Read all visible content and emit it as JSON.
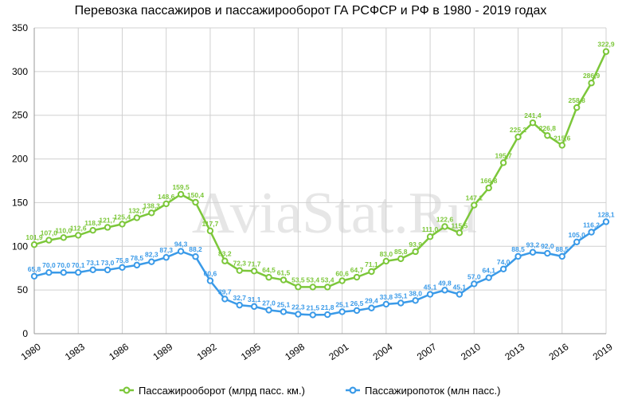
{
  "chart_data": {
    "type": "line",
    "title": "Перевозка пассажиров и пассажирооборот ГА РСФСР и РФ в 1980 -  2019 годах",
    "watermark": "AviaStat.Ru",
    "xlabel": "",
    "ylabel": "",
    "ylim": [
      0,
      350
    ],
    "yticks": [
      "0",
      "50",
      "100",
      "150",
      "200",
      "250",
      "300",
      "350"
    ],
    "x": [
      1980,
      1981,
      1982,
      1983,
      1984,
      1985,
      1986,
      1987,
      1988,
      1989,
      1990,
      1991,
      1992,
      1993,
      1994,
      1995,
      1996,
      1997,
      1998,
      1999,
      2000,
      2001,
      2002,
      2003,
      2004,
      2005,
      2006,
      2007,
      2008,
      2009,
      2010,
      2011,
      2012,
      2013,
      2014,
      2015,
      2016,
      2017,
      2018,
      2019
    ],
    "xticks": [
      "1980",
      "1983",
      "1986",
      "1989",
      "1992",
      "1995",
      "1998",
      "2001",
      "2004",
      "2007",
      "2010",
      "2013",
      "2016",
      "2019"
    ],
    "grid": true,
    "legend_position": "bottom",
    "series": [
      {
        "name": "Пассажирооборот (млрд пасс. км.)",
        "color": "#7cc73a",
        "values": [
          101.9,
          107.0,
          110.0,
          112.6,
          118.3,
          121.7,
          125.4,
          132.7,
          138.3,
          148.6,
          159.5,
          150.4,
          117.7,
          83.2,
          72.3,
          71.7,
          64.5,
          61.5,
          53.5,
          53.4,
          53.4,
          60.6,
          64.7,
          71.1,
          83.0,
          85.8,
          93.9,
          111.0,
          122.6,
          115.5,
          147.1,
          166.8,
          195.7,
          225.2,
          241.4,
          226.8,
          215.6,
          258.8,
          286.9,
          322.9
        ],
        "labels": [
          "101,9",
          "107,0",
          "110,0",
          "112,6",
          "118,3",
          "121,7",
          "125,4",
          "132,7",
          "138,3",
          "148,6",
          "159,5",
          "150,4",
          "117,7",
          "83,2",
          "72,3",
          "71,7",
          "64,5",
          "61,5",
          "53,5",
          "53,4",
          "53,4",
          "60,6",
          "64,7",
          "71,1",
          "83,0",
          "85,8",
          "93,9",
          "111,0",
          "122,6",
          "115,5",
          "147,1",
          "166,8",
          "195,7",
          "225,2",
          "241,4",
          "226,8",
          "215,6",
          "258,8",
          "286,9",
          "322,9"
        ]
      },
      {
        "name": "Пассажиропоток (млн пасс.)",
        "color": "#3a9ae8",
        "values": [
          65.8,
          70.0,
          70.0,
          70.1,
          73.1,
          73.0,
          75.8,
          78.5,
          82.3,
          87.3,
          94.3,
          88.2,
          60.6,
          39.7,
          32.7,
          31.1,
          27.0,
          25.1,
          22.3,
          21.5,
          21.8,
          25.1,
          26.5,
          29.4,
          33.8,
          35.1,
          38.0,
          45.1,
          49.8,
          45.1,
          57.0,
          64.1,
          74.0,
          88.5,
          93.2,
          92.0,
          88.5,
          105.0,
          116.2,
          128.1
        ],
        "labels": [
          "65,8",
          "70,0",
          "70,0",
          "70,1",
          "73,1",
          "73,0",
          "75,8",
          "78,5",
          "82,3",
          "87,3",
          "94,3",
          "88,2",
          "60,6",
          "39,7",
          "32,7",
          "31,1",
          "27,0",
          "25,1",
          "22,3",
          "21,5",
          "21,8",
          "25,1",
          "26,5",
          "29,4",
          "33,8",
          "35,1",
          "38,0",
          "45,1",
          "49,8",
          "45,1",
          "57,0",
          "64,1",
          "74,0",
          "88,5",
          "93,2",
          "92,0",
          "88,5",
          "105,0",
          "116,2",
          "128,1"
        ]
      }
    ]
  }
}
